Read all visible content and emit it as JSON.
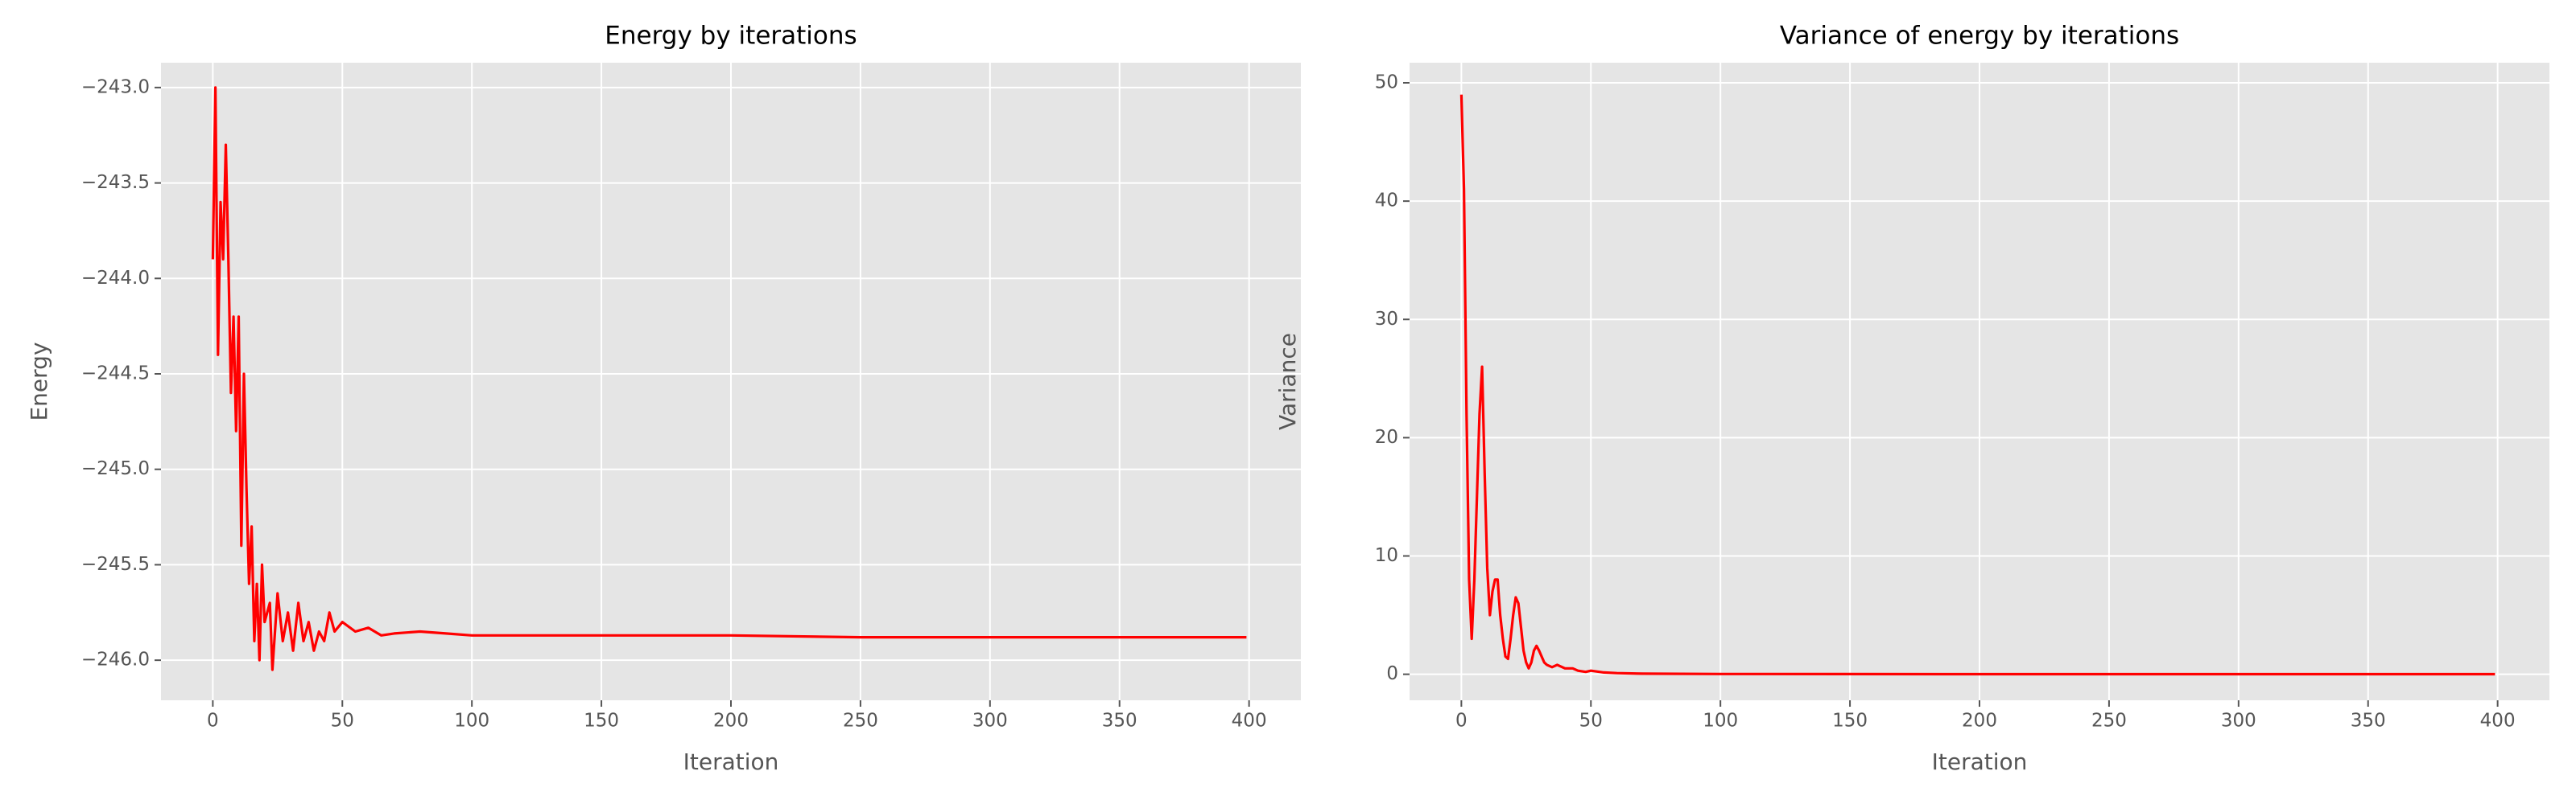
{
  "chart_data": [
    {
      "type": "line",
      "title": "Energy by iterations",
      "xlabel": "Iteration",
      "ylabel": "Energy",
      "color": "#ff0000",
      "grid": true,
      "x": [
        0,
        1,
        2,
        3,
        4,
        5,
        6,
        7,
        8,
        9,
        10,
        11,
        12,
        13,
        14,
        15,
        16,
        17,
        18,
        19,
        20,
        22,
        23,
        25,
        27,
        29,
        31,
        33,
        35,
        37,
        39,
        41,
        43,
        45,
        47,
        50,
        55,
        60,
        65,
        70,
        80,
        90,
        100,
        120,
        150,
        200,
        250,
        300,
        350,
        399
      ],
      "values": [
        -243.9,
        -243.0,
        -244.4,
        -243.6,
        -243.9,
        -243.3,
        -243.9,
        -244.6,
        -244.2,
        -244.8,
        -244.2,
        -245.4,
        -244.5,
        -245.1,
        -245.6,
        -245.3,
        -245.9,
        -245.6,
        -246.0,
        -245.5,
        -245.8,
        -245.7,
        -246.05,
        -245.65,
        -245.9,
        -245.75,
        -245.95,
        -245.7,
        -245.9,
        -245.8,
        -245.95,
        -245.85,
        -245.9,
        -245.75,
        -245.85,
        -245.8,
        -245.85,
        -245.83,
        -245.87,
        -245.86,
        -245.85,
        -245.86,
        -245.87,
        -245.87,
        -245.87,
        -245.87,
        -245.88,
        -245.88,
        -245.88,
        -245.88
      ],
      "xlim": [
        -20,
        420
      ],
      "xticks": [
        0,
        50,
        100,
        150,
        200,
        250,
        300,
        350,
        400
      ],
      "ylim": [
        -246.21,
        -242.87
      ],
      "yticks": [
        {
          "value": -246.0,
          "label": "−246.0"
        },
        {
          "value": -245.5,
          "label": "−245.5"
        },
        {
          "value": -245.0,
          "label": "−245.0"
        },
        {
          "value": -244.5,
          "label": "−244.5"
        },
        {
          "value": -244.0,
          "label": "−244.0"
        },
        {
          "value": -243.5,
          "label": "−243.5"
        },
        {
          "value": -243.0,
          "label": "−243.0"
        }
      ]
    },
    {
      "type": "line",
      "title": "Variance of energy by iterations",
      "xlabel": "Iteration",
      "ylabel": "Variance",
      "color": "#ff0000",
      "grid": true,
      "x": [
        0,
        1,
        2,
        3,
        4,
        5,
        6,
        7,
        8,
        9,
        10,
        11,
        12,
        13,
        14,
        15,
        16,
        17,
        18,
        19,
        20,
        21,
        22,
        23,
        24,
        25,
        26,
        27,
        28,
        29,
        30,
        31,
        32,
        33,
        35,
        37,
        40,
        43,
        45,
        48,
        50,
        55,
        60,
        70,
        100,
        200,
        399
      ],
      "values": [
        49,
        41,
        22,
        8,
        3,
        8,
        15,
        22,
        26,
        17,
        9,
        5,
        7,
        8,
        8,
        5,
        3,
        1.5,
        1.3,
        3,
        5,
        6.5,
        6,
        4,
        2,
        1,
        0.5,
        1,
        2,
        2.4,
        2,
        1.5,
        1,
        0.8,
        0.6,
        0.8,
        0.5,
        0.5,
        0.3,
        0.2,
        0.3,
        0.15,
        0.1,
        0.05,
        0.02,
        0.01,
        0.01
      ],
      "xlim": [
        -20,
        420
      ],
      "xticks": [
        0,
        50,
        100,
        150,
        200,
        250,
        300,
        350,
        400
      ],
      "ylim": [
        -2.2,
        51.7
      ],
      "yticks": [
        0,
        10,
        20,
        30,
        40,
        50
      ]
    }
  ]
}
